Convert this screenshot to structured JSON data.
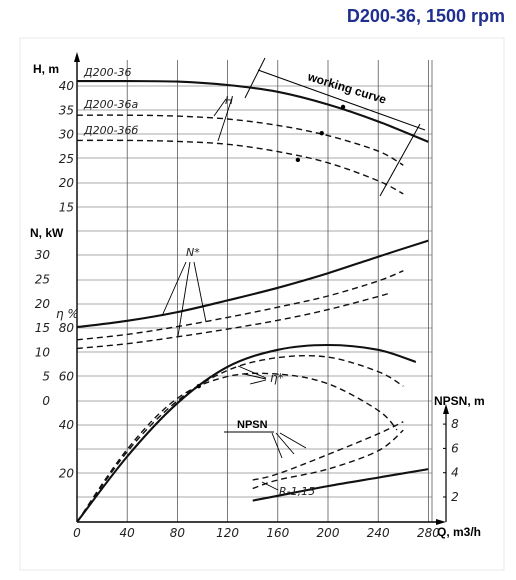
{
  "title": "D200-36, 1500 rpm",
  "annotation_working_curve": "working curve",
  "chart_data": {
    "type": "line",
    "title": "D200-36, 1500 rpm",
    "x": {
      "label": "Q, m3/h",
      "ticks": [
        0,
        40,
        80,
        120,
        160,
        200,
        240,
        280
      ],
      "range": [
        0,
        290
      ]
    },
    "axes": {
      "H": {
        "label": "H, m",
        "ticks": [
          15,
          20,
          25,
          30,
          35,
          40
        ],
        "range": [
          14,
          44
        ]
      },
      "N": {
        "label": "N, kW",
        "ticks": [
          0,
          5,
          10,
          15,
          20,
          25,
          30
        ],
        "range": [
          0,
          34
        ]
      },
      "eta": {
        "label": "η %",
        "ticks": [
          20,
          40,
          60,
          80
        ],
        "range": [
          0,
          90
        ]
      },
      "NPSH": {
        "label": "NPSN, m",
        "ticks": [
          2,
          4,
          6,
          8
        ],
        "range": [
          0,
          9
        ]
      }
    },
    "series": [
      {
        "axis": "H",
        "name": "Д200-36",
        "style": "solid",
        "x": [
          0,
          40,
          80,
          120,
          160,
          200,
          240,
          280
        ],
        "y": [
          41,
          41,
          40.9,
          40.2,
          38.8,
          36.2,
          32.7,
          28.5
        ]
      },
      {
        "axis": "H",
        "name": "Д200-36а",
        "style": "dashed",
        "x": [
          0,
          40,
          80,
          120,
          160,
          200,
          240,
          260
        ],
        "y": [
          34,
          34,
          33.8,
          33.2,
          31.9,
          29.8,
          26.6,
          23.7
        ]
      },
      {
        "axis": "H",
        "name": "Д200-36б",
        "style": "dashed",
        "x": [
          0,
          40,
          80,
          120,
          160,
          200,
          240,
          260
        ],
        "y": [
          28.8,
          28.8,
          28.6,
          28,
          26.5,
          24.2,
          20.5,
          17.8
        ]
      },
      {
        "axis": "N",
        "name": "N",
        "style": "solid",
        "x": [
          0,
          40,
          80,
          120,
          160,
          200,
          240,
          280
        ],
        "y": [
          15.2,
          16.5,
          18.3,
          20.7,
          23.3,
          26.3,
          29.7,
          33
        ]
      },
      {
        "axis": "N",
        "name": "N",
        "style": "dashed",
        "x": [
          0,
          40,
          80,
          120,
          160,
          200,
          240,
          260
        ],
        "y": [
          12.6,
          13.7,
          15.3,
          17.2,
          19.3,
          21.6,
          24.7,
          26.8
        ]
      },
      {
        "axis": "N",
        "name": "N",
        "style": "dashed",
        "x": [
          0,
          40,
          80,
          120,
          160,
          200,
          240,
          250
        ],
        "y": [
          10.8,
          11.8,
          13.2,
          14.8,
          16.6,
          18.8,
          21.5,
          22.3
        ]
      },
      {
        "axis": "eta",
        "name": "η",
        "style": "solid",
        "x": [
          0,
          40,
          80,
          120,
          160,
          200,
          240,
          270
        ],
        "y": [
          0,
          27,
          49,
          64,
          71,
          73,
          71,
          66
        ]
      },
      {
        "axis": "eta",
        "name": "η",
        "style": "dashed",
        "x": [
          0,
          40,
          80,
          120,
          160,
          200,
          240,
          260
        ],
        "y": [
          0,
          29,
          50,
          62.5,
          67.8,
          68,
          62,
          56
        ]
      },
      {
        "axis": "eta",
        "name": "η",
        "style": "dashed",
        "x": [
          0,
          40,
          80,
          120,
          160,
          200,
          240,
          255
        ],
        "y": [
          0,
          30,
          51,
          60,
          61,
          57,
          46,
          38
        ]
      },
      {
        "axis": "NPSH",
        "name": "NPSN",
        "style": "solid",
        "x": [
          140,
          160,
          200,
          240,
          280
        ],
        "y": [
          1.7,
          2.1,
          2.9,
          3.6,
          4.3
        ]
      },
      {
        "axis": "NPSH",
        "name": "NPSN",
        "style": "dashed",
        "x": [
          140,
          160,
          200,
          240,
          260
        ],
        "y": [
          2.7,
          3.4,
          4.3,
          5.8,
          7.5
        ]
      },
      {
        "axis": "NPSH",
        "name": "NPSN",
        "style": "dashed",
        "x": [
          140,
          160,
          200,
          240,
          260
        ],
        "y": [
          3.4,
          3.9,
          5.5,
          7.2,
          8.2
        ]
      }
    ],
    "annotations": [
      "working curve",
      "H",
      "N",
      "η",
      "NPSN",
      "R-1,15"
    ],
    "grid": true
  }
}
